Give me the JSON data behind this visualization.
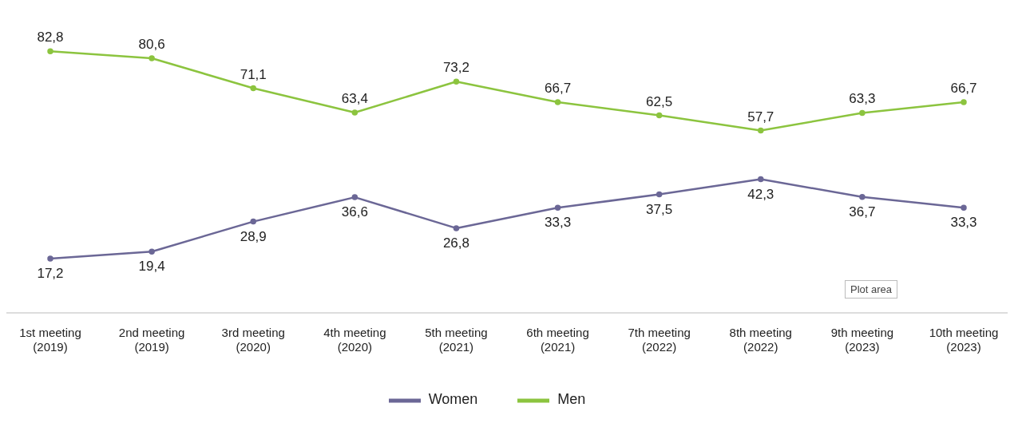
{
  "chart_data": {
    "type": "line",
    "categories": [
      "1st meeting\n(2019)",
      "2nd meeting\n(2019)",
      "3rd meeting\n(2020)",
      "4th meeting\n(2020)",
      "5th meeting\n(2021)",
      "6th meeting\n(2021)",
      "7th meeting\n(2022)",
      "8th meeting\n(2022)",
      "9th meeting\n(2023)",
      "10th meeting\n(2023)"
    ],
    "series": [
      {
        "name": "Women",
        "color": "#6b6796",
        "values": [
          17.2,
          19.4,
          28.9,
          36.6,
          26.8,
          33.3,
          37.5,
          42.3,
          36.7,
          33.3
        ],
        "value_labels": [
          "17,2",
          "19,4",
          "28,9",
          "36,6",
          "26,8",
          "33,3",
          "37,5",
          "42,3",
          "36,7",
          "33,3"
        ]
      },
      {
        "name": "Men",
        "color": "#8cc43f",
        "values": [
          82.8,
          80.6,
          71.1,
          63.4,
          73.2,
          66.7,
          62.5,
          57.7,
          63.3,
          66.7
        ],
        "value_labels": [
          "82,8",
          "80,6",
          "71,1",
          "63,4",
          "73,2",
          "66,7",
          "62,5",
          "57,7",
          "63,3",
          "66,7"
        ]
      }
    ],
    "legend": "bottom",
    "grid": false,
    "marker": "circle",
    "line_style": "solid",
    "annotations": [
      "Plot area"
    ]
  }
}
